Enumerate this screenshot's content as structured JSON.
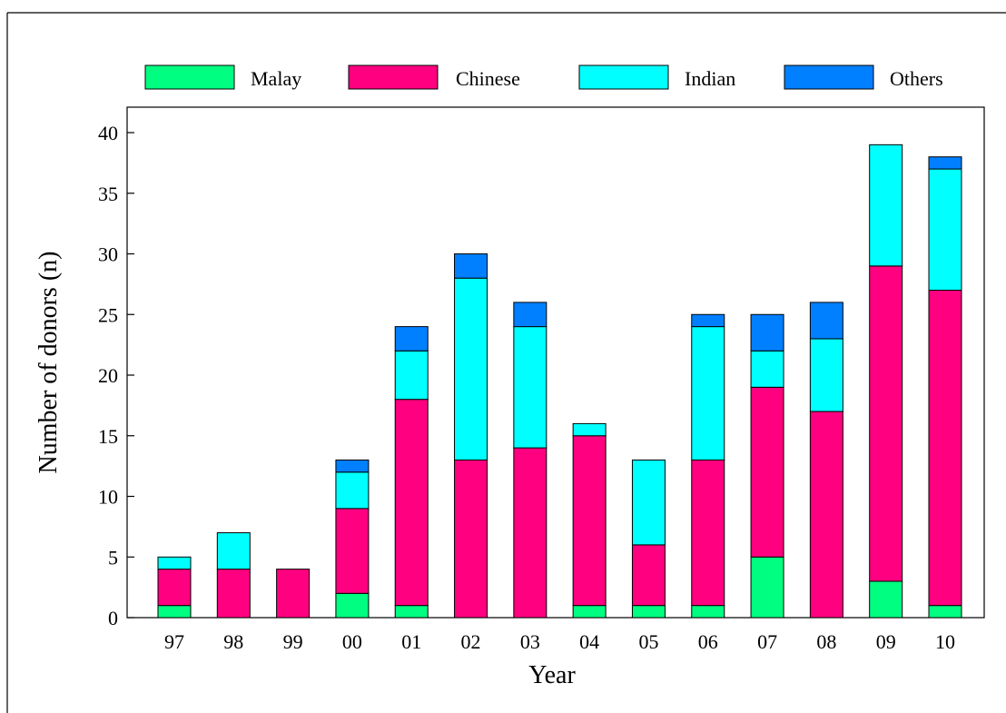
{
  "chart_data": {
    "type": "bar",
    "stacked": true,
    "title": "",
    "xlabel": "Year",
    "ylabel": "Number of donors (n)",
    "ylim": [
      0,
      40
    ],
    "yticks": [
      0,
      5,
      10,
      15,
      20,
      25,
      30,
      35,
      40
    ],
    "grid": false,
    "legend_position": "top",
    "categories": [
      "97",
      "98",
      "99",
      "00",
      "01",
      "02",
      "03",
      "04",
      "05",
      "06",
      "07",
      "08",
      "09",
      "10"
    ],
    "series": [
      {
        "name": "Malay",
        "color": "#00FF80",
        "values": [
          1,
          0,
          0,
          2,
          1,
          0,
          0,
          1,
          1,
          1,
          5,
          0,
          3,
          1
        ]
      },
      {
        "name": "Chinese",
        "color": "#FF0080",
        "values": [
          3,
          4,
          4,
          7,
          17,
          13,
          14,
          14,
          5,
          12,
          14,
          17,
          26,
          26
        ]
      },
      {
        "name": "Indian",
        "color": "#00FFFF",
        "values": [
          1,
          3,
          0,
          3,
          4,
          15,
          10,
          1,
          7,
          11,
          3,
          6,
          10,
          10
        ]
      },
      {
        "name": "Others",
        "color": "#0080FF",
        "values": [
          0,
          0,
          0,
          1,
          2,
          2,
          2,
          0,
          0,
          1,
          3,
          3,
          0,
          1
        ]
      }
    ]
  }
}
